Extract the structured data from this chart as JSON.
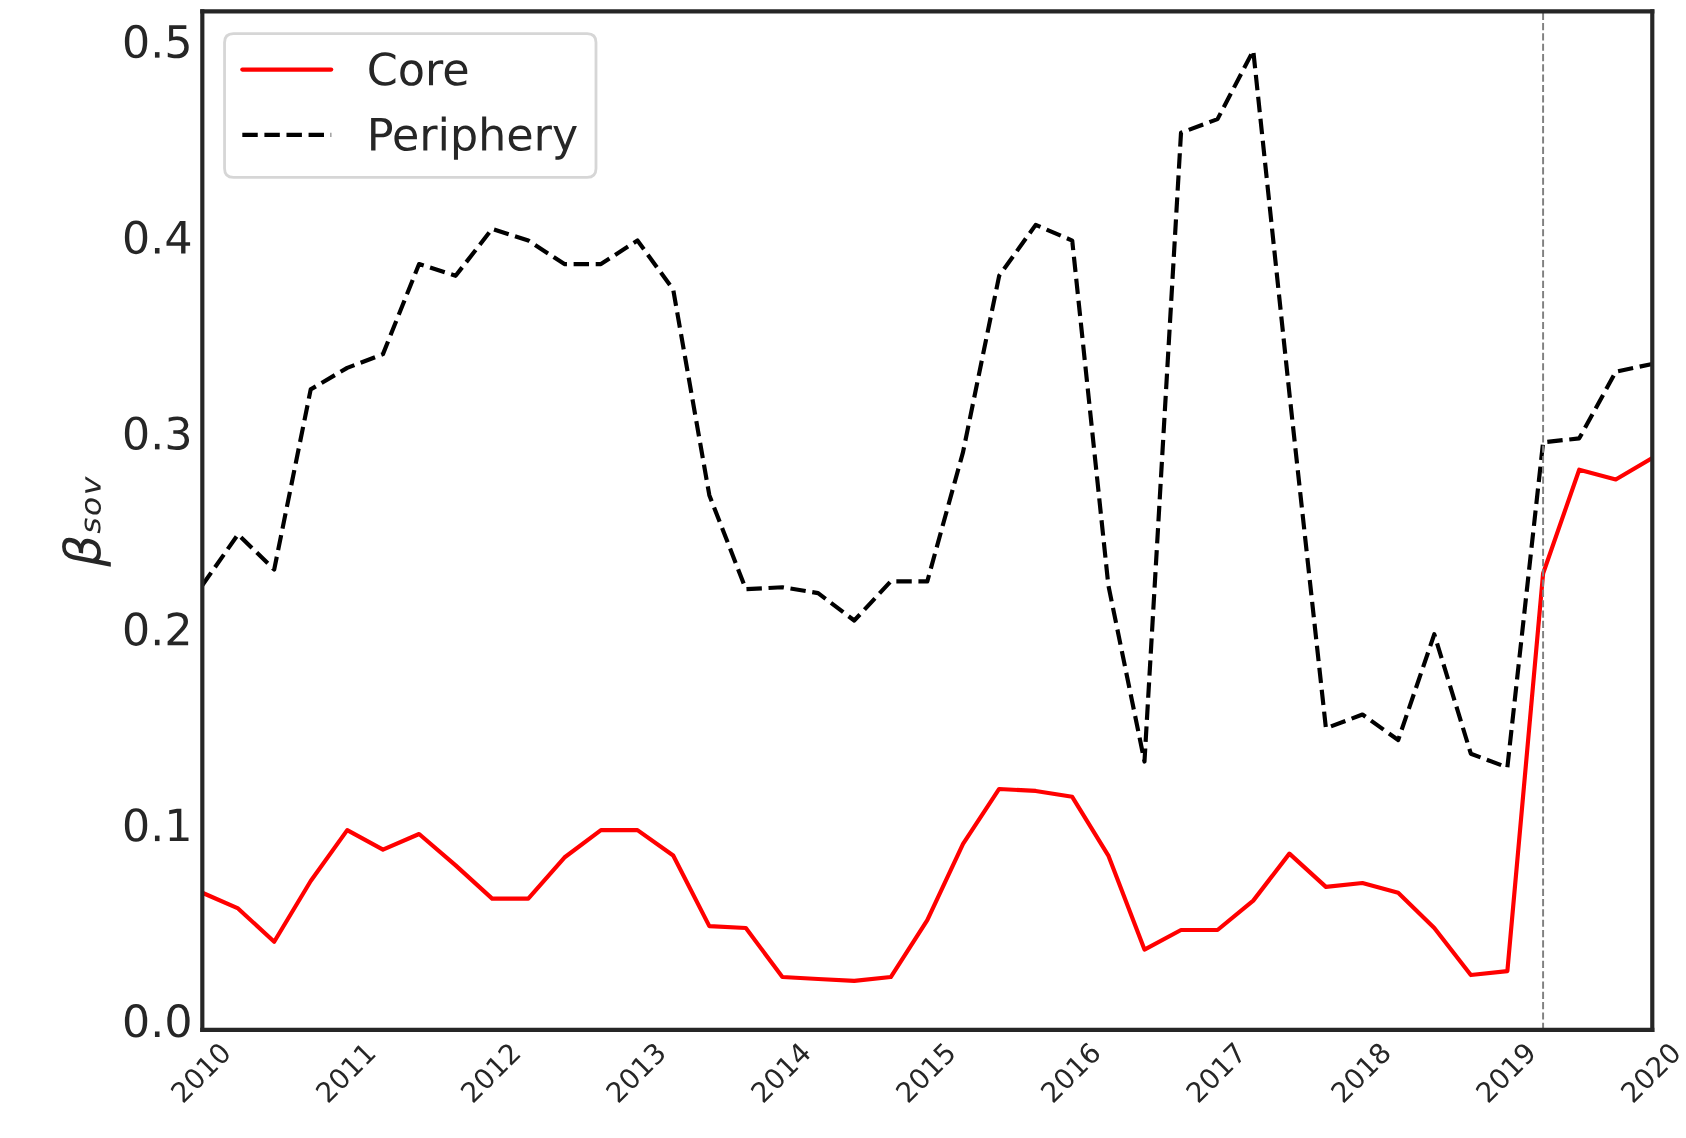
{
  "chart_data": {
    "type": "line",
    "ylabel": "βₛₒᵥ",
    "x": [
      "2010-01",
      "2010-04",
      "2010-07",
      "2010-10",
      "2011-01",
      "2011-04",
      "2011-07",
      "2011-10",
      "2012-01",
      "2012-04",
      "2012-07",
      "2012-10",
      "2013-01",
      "2013-04",
      "2013-07",
      "2013-10",
      "2014-01",
      "2014-04",
      "2014-07",
      "2014-10",
      "2015-01",
      "2015-04",
      "2015-07",
      "2015-10",
      "2016-01",
      "2016-04",
      "2016-07",
      "2016-10",
      "2017-01",
      "2017-04",
      "2017-07",
      "2017-10",
      "2018-01",
      "2018-04",
      "2018-07",
      "2018-10",
      "2019-01",
      "2019-04",
      "2019-07",
      "2019-10",
      "2020-01"
    ],
    "series": [
      {
        "name": "Core",
        "color": "#ff0000",
        "line_style": "solid",
        "values": [
          0.065,
          0.057,
          0.04,
          0.071,
          0.097,
          0.087,
          0.095,
          0.079,
          0.062,
          0.062,
          0.083,
          0.097,
          0.097,
          0.084,
          0.048,
          0.047,
          0.022,
          0.021,
          0.02,
          0.022,
          0.051,
          0.09,
          0.118,
          0.117,
          0.114,
          0.084,
          0.036,
          0.046,
          0.046,
          0.061,
          0.085,
          0.068,
          0.07,
          0.065,
          0.047,
          0.023,
          0.025,
          0.228,
          0.281,
          0.276,
          0.287
        ]
      },
      {
        "name": "Periphery",
        "color": "#000000",
        "line_style": "dashed",
        "values": [
          0.222,
          0.248,
          0.23,
          0.322,
          0.333,
          0.34,
          0.386,
          0.38,
          0.404,
          0.398,
          0.386,
          0.386,
          0.398,
          0.373,
          0.268,
          0.22,
          0.221,
          0.218,
          0.204,
          0.224,
          0.224,
          0.29,
          0.38,
          0.406,
          0.398,
          0.222,
          0.132,
          0.453,
          0.46,
          0.495,
          0.32,
          0.149,
          0.156,
          0.143,
          0.197,
          0.136,
          0.129,
          0.295,
          0.297,
          0.331,
          0.335
        ]
      }
    ],
    "xlim": [
      "2010-01",
      "2020-01"
    ],
    "xticks": [
      "2010",
      "2011",
      "2012",
      "2013",
      "2014",
      "2015",
      "2016",
      "2017",
      "2018",
      "2019",
      "2020"
    ],
    "ylim": [
      -0.005,
      0.515
    ],
    "yticks": [
      {
        "value": 0,
        "label": "0.0"
      },
      0.1,
      0.2,
      0.3,
      0.4,
      0.5
    ],
    "ref_lines": [
      {
        "axis": "x",
        "value": "2019-04",
        "color": "#808080",
        "line_style": "dashed"
      }
    ],
    "grid": false,
    "legend": "top left",
    "marker": "none"
  }
}
